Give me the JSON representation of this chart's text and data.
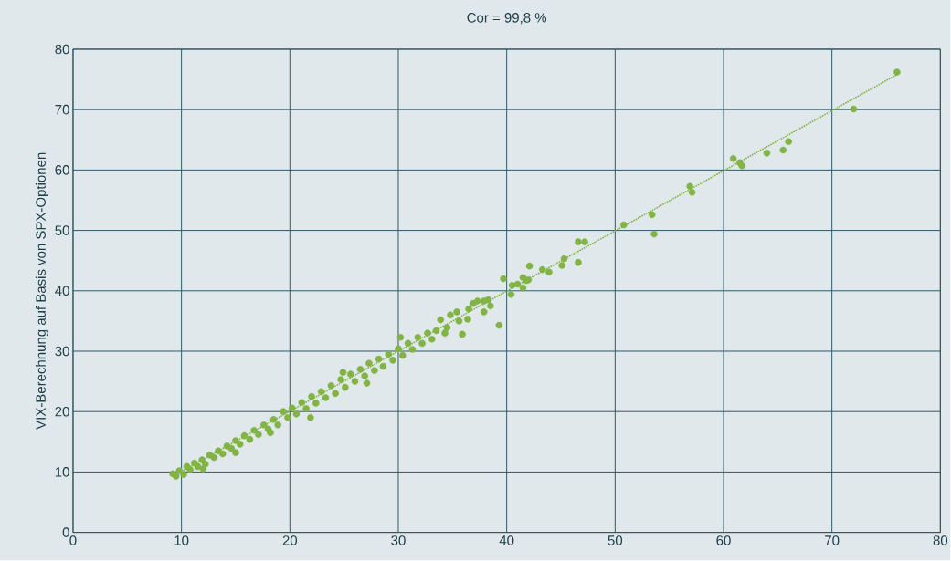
{
  "chart_data": {
    "type": "scatter",
    "title": "Cor = 99,8 %",
    "ylabel": "VIX-Berechnung auf Basis von SPX-Optionen",
    "xlim": [
      0,
      80
    ],
    "ylim": [
      0,
      80
    ],
    "xticks": [
      0,
      10,
      20,
      30,
      40,
      50,
      60,
      70,
      80
    ],
    "yticks": [
      0,
      10,
      20,
      30,
      40,
      50,
      60,
      70,
      80
    ],
    "grid": true,
    "series": [
      {
        "marker": "circle",
        "color": "#82b445",
        "x": [
          9.2,
          9.5,
          9.8,
          10.2,
          10.5,
          10.8,
          11.2,
          11.5,
          11.9,
          12.2,
          12.6,
          13.0,
          13.4,
          13.8,
          14.2,
          14.6,
          15.0,
          15.4,
          15.8,
          16.3,
          16.7,
          17.1,
          17.6,
          18.0,
          18.5,
          18.9,
          19.4,
          19.8,
          20.2,
          20.6,
          21.1,
          21.5,
          22.0,
          22.4,
          22.9,
          23.3,
          23.8,
          24.2,
          24.7,
          25.1,
          25.6,
          26.0,
          26.5,
          26.9,
          27.3,
          27.8,
          28.2,
          28.6,
          29.1,
          29.5,
          30.0,
          30.4,
          30.9,
          31.3,
          31.8,
          32.2,
          32.7,
          33.1,
          33.5,
          18.2,
          21.9,
          24.9,
          27.1,
          30.2,
          12.0,
          15.0,
          33.9,
          34.3,
          34.5,
          34.8,
          35.4,
          35.6,
          35.9,
          36.4,
          36.5,
          36.9,
          37.3,
          37.9,
          37.9,
          38.3,
          38.5,
          39.3,
          39.7,
          40.4,
          40.5,
          41.0,
          41.5,
          41.5,
          41.8,
          42.0,
          42.1,
          43.3,
          43.9,
          45.1,
          45.3,
          46.6,
          46.6,
          47.2,
          50.8,
          53.4,
          53.6,
          56.9,
          57.1,
          60.9,
          61.5,
          61.7,
          64.0,
          65.5,
          66.0,
          72.0,
          76.0
        ],
        "values": [
          9.7,
          9.3,
          10.2,
          9.6,
          10.9,
          10.4,
          11.5,
          10.9,
          12.0,
          11.3,
          12.8,
          12.4,
          13.5,
          13.0,
          14.3,
          13.9,
          15.2,
          14.6,
          16.0,
          15.4,
          16.9,
          16.2,
          17.8,
          17.1,
          18.7,
          17.8,
          20.0,
          19.0,
          20.6,
          19.6,
          21.5,
          20.5,
          22.5,
          21.4,
          23.3,
          22.3,
          24.3,
          23.0,
          25.3,
          24.0,
          26.2,
          25.0,
          27.0,
          25.9,
          28.0,
          26.8,
          28.7,
          27.5,
          29.5,
          28.5,
          30.4,
          29.3,
          31.3,
          30.3,
          32.3,
          31.3,
          33.0,
          32.0,
          33.4,
          16.5,
          19.0,
          26.5,
          24.7,
          32.3,
          10.5,
          13.2,
          35.2,
          33.0,
          33.9,
          36.0,
          36.5,
          35.0,
          32.8,
          35.3,
          37.0,
          37.9,
          38.3,
          36.5,
          38.3,
          38.5,
          37.5,
          34.3,
          42.0,
          39.4,
          40.9,
          41.1,
          42.2,
          40.5,
          41.7,
          41.8,
          44.1,
          43.5,
          43.1,
          44.2,
          45.3,
          48.1,
          44.7,
          48.1,
          50.9,
          52.6,
          49.4,
          57.3,
          56.3,
          61.9,
          61.2,
          60.7,
          62.8,
          63.3,
          64.7,
          70.1,
          76.2
        ]
      },
      {
        "type": "line",
        "line_style": "dotted",
        "marker": "none",
        "color": "#82b445",
        "x": [
          9.2,
          76.0
        ],
        "values": [
          9.3,
          75.8
        ]
      }
    ]
  }
}
